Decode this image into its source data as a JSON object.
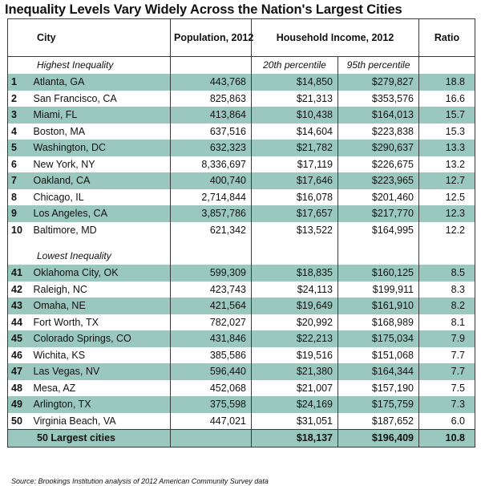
{
  "title": "Inequality Levels Vary Widely Across the Nation's Largest Cities",
  "columns": {
    "city": "City",
    "population": "Population, 2012",
    "income": "Household Income, 2012",
    "ratio": "Ratio",
    "p20": "20th percentile",
    "p95": "95th percentile"
  },
  "sections": {
    "highest": "Highest Inequality",
    "lowest": "Lowest Inequality"
  },
  "highest_rows": [
    {
      "rank": "1",
      "city": "Atlanta, GA",
      "population": "443,768",
      "p20": "$14,850",
      "p95": "$279,827",
      "ratio": "18.8"
    },
    {
      "rank": "2",
      "city": "San Francisco, CA",
      "population": "825,863",
      "p20": "$21,313",
      "p95": "$353,576",
      "ratio": "16.6"
    },
    {
      "rank": "3",
      "city": "Miami, FL",
      "population": "413,864",
      "p20": "$10,438",
      "p95": "$164,013",
      "ratio": "15.7"
    },
    {
      "rank": "4",
      "city": "Boston, MA",
      "population": "637,516",
      "p20": "$14,604",
      "p95": "$223,838",
      "ratio": "15.3"
    },
    {
      "rank": "5",
      "city": "Washington, DC",
      "population": "632,323",
      "p20": "$21,782",
      "p95": "$290,637",
      "ratio": "13.3"
    },
    {
      "rank": "6",
      "city": "New York, NY",
      "population": "8,336,697",
      "p20": "$17,119",
      "p95": "$226,675",
      "ratio": "13.2"
    },
    {
      "rank": "7",
      "city": "Oakland, CA",
      "population": "400,740",
      "p20": "$17,646",
      "p95": "$223,965",
      "ratio": "12.7"
    },
    {
      "rank": "8",
      "city": "Chicago, IL",
      "population": "2,714,844",
      "p20": "$16,078",
      "p95": "$201,460",
      "ratio": "12.5"
    },
    {
      "rank": "9",
      "city": "Los Angeles, CA",
      "population": "3,857,786",
      "p20": "$17,657",
      "p95": "$217,770",
      "ratio": "12.3"
    },
    {
      "rank": "10",
      "city": "Baltimore, MD",
      "population": "621,342",
      "p20": "$13,522",
      "p95": "$164,995",
      "ratio": "12.2"
    }
  ],
  "lowest_rows": [
    {
      "rank": "41",
      "city": "Oklahoma City, OK",
      "population": "599,309",
      "p20": "$18,835",
      "p95": "$160,125",
      "ratio": "8.5"
    },
    {
      "rank": "42",
      "city": "Raleigh, NC",
      "population": "423,743",
      "p20": "$24,113",
      "p95": "$199,911",
      "ratio": "8.3"
    },
    {
      "rank": "43",
      "city": "Omaha, NE",
      "population": "421,564",
      "p20": "$19,649",
      "p95": "$161,910",
      "ratio": "8.2"
    },
    {
      "rank": "44",
      "city": "Fort Worth, TX",
      "population": "782,027",
      "p20": "$20,992",
      "p95": "$168,989",
      "ratio": "8.1"
    },
    {
      "rank": "45",
      "city": "Colorado Springs, CO",
      "population": "431,846",
      "p20": "$22,213",
      "p95": "$175,034",
      "ratio": "7.9"
    },
    {
      "rank": "46",
      "city": "Wichita, KS",
      "population": "385,586",
      "p20": "$19,516",
      "p95": "$151,068",
      "ratio": "7.7"
    },
    {
      "rank": "47",
      "city": "Las Vegas, NV",
      "population": "596,440",
      "p20": "$21,380",
      "p95": "$164,344",
      "ratio": "7.7"
    },
    {
      "rank": "48",
      "city": "Mesa, AZ",
      "population": "452,068",
      "p20": "$21,007",
      "p95": "$157,190",
      "ratio": "7.5"
    },
    {
      "rank": "49",
      "city": "Arlington, TX",
      "population": "375,598",
      "p20": "$24,169",
      "p95": "$175,759",
      "ratio": "7.3"
    },
    {
      "rank": "50",
      "city": "Virginia Beach, VA",
      "population": "447,021",
      "p20": "$31,051",
      "p95": "$187,652",
      "ratio": "6.0"
    }
  ],
  "total": {
    "label": "50 Largest cities",
    "p20": "$18,137",
    "p95": "$196,409",
    "ratio": "10.8"
  },
  "source": "Source: Brookings Institution analysis of 2012 American Community Survey data",
  "colors": {
    "row_shade": "#9ac8be",
    "border": "#3a3a3a"
  }
}
